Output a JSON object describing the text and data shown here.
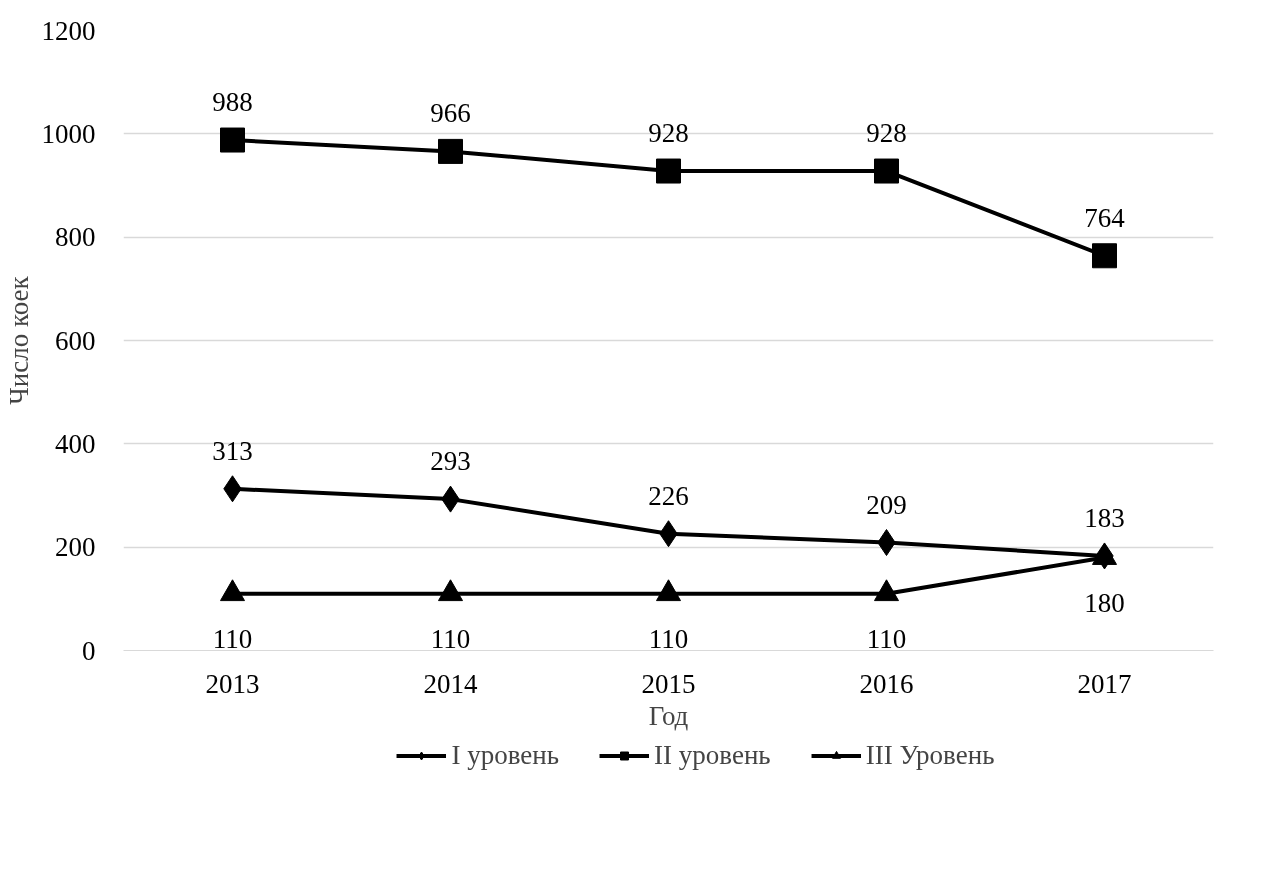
{
  "chart_data": {
    "type": "line",
    "xlabel": "Год",
    "ylabel": "Число коек",
    "categories": [
      "2013",
      "2014",
      "2015",
      "2016",
      "2017"
    ],
    "series": [
      {
        "name": "I уровень",
        "color": "#000000",
        "marker": "diamond",
        "values": [
          313,
          293,
          226,
          209,
          183
        ]
      },
      {
        "name": "II уровень",
        "color": "#000000",
        "marker": "square",
        "values": [
          988,
          966,
          928,
          928,
          764
        ]
      },
      {
        "name": "III Уровень",
        "color": "#000000",
        "marker": "triangle",
        "values": [
          110,
          110,
          110,
          110,
          180
        ]
      }
    ],
    "ylim": [
      0,
      1200
    ],
    "yticks": [
      0,
      200,
      400,
      600,
      800,
      1000,
      1200
    ],
    "grid": "y",
    "legend": "bottom",
    "data_labels": true,
    "line_style": "solid"
  }
}
